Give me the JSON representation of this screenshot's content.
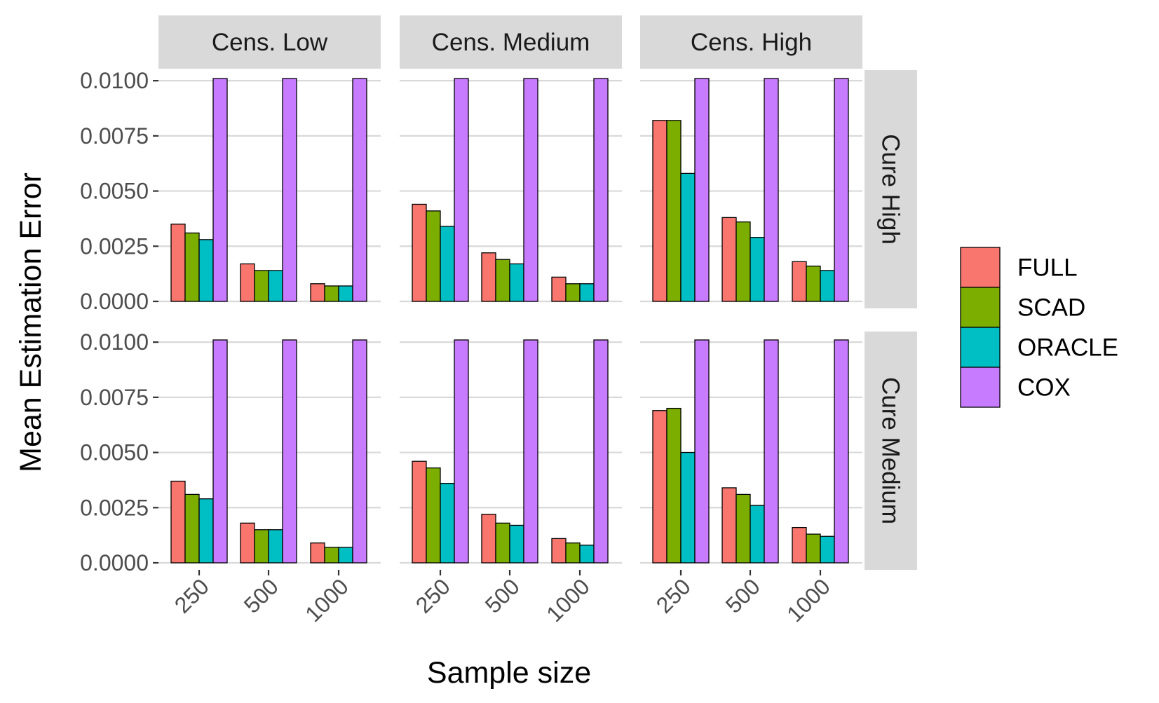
{
  "chart_data": {
    "type": "bar",
    "xlabel": "Sample size",
    "ylabel": "Mean Estimation Error",
    "ylim": [
      0,
      0.0101
    ],
    "yticks": [
      "0.0000",
      "0.0025",
      "0.0050",
      "0.0075",
      "0.0100"
    ],
    "ytick_values": [
      0,
      0.0025,
      0.005,
      0.0075,
      0.01
    ],
    "categories": [
      "250",
      "500",
      "1000"
    ],
    "columns": [
      "Cens. Low",
      "Cens. Medium",
      "Cens. High"
    ],
    "rows": [
      "Cure High",
      "Cure Medium"
    ],
    "grid": true,
    "legend_position": "right",
    "series": [
      {
        "name": "FULL",
        "color": "#F8766D"
      },
      {
        "name": "SCAD",
        "color": "#7CAE00"
      },
      {
        "name": "ORACLE",
        "color": "#00BFC4"
      },
      {
        "name": "COX",
        "color": "#C77CFF"
      }
    ],
    "panels": [
      {
        "row": "Cure High",
        "col": "Cens. Low",
        "values": {
          "FULL": [
            0.0035,
            0.0017,
            0.0008
          ],
          "SCAD": [
            0.0031,
            0.0014,
            0.0007
          ],
          "ORACLE": [
            0.0028,
            0.0014,
            0.0007
          ],
          "COX": [
            0.0105,
            0.0105,
            0.0105
          ]
        }
      },
      {
        "row": "Cure High",
        "col": "Cens. Medium",
        "values": {
          "FULL": [
            0.0044,
            0.0022,
            0.0011
          ],
          "SCAD": [
            0.0041,
            0.0019,
            0.0008
          ],
          "ORACLE": [
            0.0034,
            0.0017,
            0.0008
          ],
          "COX": [
            0.0105,
            0.0105,
            0.0105
          ]
        }
      },
      {
        "row": "Cure High",
        "col": "Cens. High",
        "values": {
          "FULL": [
            0.0082,
            0.0038,
            0.0018
          ],
          "SCAD": [
            0.0082,
            0.0036,
            0.0016
          ],
          "ORACLE": [
            0.0058,
            0.0029,
            0.0014
          ],
          "COX": [
            0.0105,
            0.0105,
            0.0105
          ]
        }
      },
      {
        "row": "Cure Medium",
        "col": "Cens. Low",
        "values": {
          "FULL": [
            0.0037,
            0.0018,
            0.0009
          ],
          "SCAD": [
            0.0031,
            0.0015,
            0.0007
          ],
          "ORACLE": [
            0.0029,
            0.0015,
            0.0007
          ],
          "COX": [
            0.0105,
            0.0105,
            0.0105
          ]
        }
      },
      {
        "row": "Cure Medium",
        "col": "Cens. Medium",
        "values": {
          "FULL": [
            0.0046,
            0.0022,
            0.0011
          ],
          "SCAD": [
            0.0043,
            0.0018,
            0.0009
          ],
          "ORACLE": [
            0.0036,
            0.0017,
            0.0008
          ],
          "COX": [
            0.0105,
            0.0105,
            0.0105
          ]
        }
      },
      {
        "row": "Cure Medium",
        "col": "Cens. High",
        "values": {
          "FULL": [
            0.0069,
            0.0034,
            0.0016
          ],
          "SCAD": [
            0.007,
            0.0031,
            0.0013
          ],
          "ORACLE": [
            0.005,
            0.0026,
            0.0012
          ],
          "COX": [
            0.0105,
            0.0105,
            0.0105
          ]
        }
      }
    ]
  }
}
